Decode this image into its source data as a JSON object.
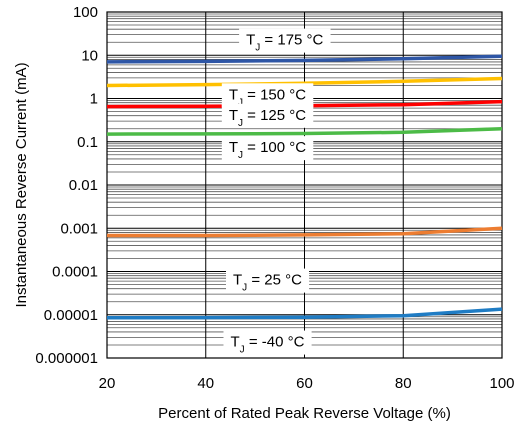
{
  "chart_data": {
    "type": "line",
    "title": "",
    "xlabel": "Percent of Rated Peak Reverse Voltage (%)",
    "ylabel": "Instantaneous Reverse Current (mA)",
    "xlim": [
      20,
      100
    ],
    "ylim": [
      1e-06,
      100
    ],
    "yscale": "log",
    "grid": true,
    "x_ticks": [
      20,
      40,
      60,
      80,
      100
    ],
    "x_tick_labels": [
      "20",
      "40",
      "60",
      "80",
      "100"
    ],
    "y_ticks": [
      1e-06,
      1e-05,
      0.0001,
      0.001,
      0.01,
      0.1,
      1,
      10,
      100
    ],
    "y_tick_labels": [
      "0.000001",
      "0.00001",
      "0.0001",
      "0.001",
      "0.01",
      "0.1",
      "1",
      "10",
      "100"
    ],
    "series": [
      {
        "color": "#2e56a6",
        "x": [
          20,
          40,
          60,
          80,
          100
        ],
        "y": [
          7.0,
          7.2,
          7.6,
          8.3,
          9.5
        ]
      },
      {
        "color": "#ffc000",
        "x": [
          20,
          40,
          60,
          80,
          100
        ],
        "y": [
          2.0,
          2.1,
          2.25,
          2.5,
          2.9
        ]
      },
      {
        "color": "#ff0000",
        "x": [
          20,
          40,
          60,
          80,
          100
        ],
        "y": [
          0.65,
          0.66,
          0.68,
          0.72,
          0.85
        ]
      },
      {
        "color": "#4cbb47",
        "x": [
          20,
          40,
          60,
          80,
          100
        ],
        "y": [
          0.15,
          0.152,
          0.155,
          0.165,
          0.2
        ]
      },
      {
        "color": "#ed7d31",
        "x": [
          20,
          40,
          60,
          80,
          100
        ],
        "y": [
          0.00068,
          0.00068,
          0.0007,
          0.00075,
          0.001
        ]
      },
      {
        "color": "#1f7cc4",
        "x": [
          20,
          40,
          60,
          80,
          100
        ],
        "y": [
          8.5e-06,
          8.6e-06,
          8.8e-06,
          9.5e-06,
          1.35e-05
        ]
      }
    ],
    "annotations": [
      {
        "x": 56,
        "y": 23,
        "text": "T",
        "sub": "J",
        "rest": " = 175 °C"
      },
      {
        "x": 52.5,
        "y": 1.25,
        "text": "T",
        "sub": "J",
        "rest": " = 150 °C"
      },
      {
        "x": 52.5,
        "y": 0.42,
        "text": "T",
        "sub": "J",
        "rest": " = 125 °C"
      },
      {
        "x": 52.5,
        "y": 0.075,
        "text": "T",
        "sub": "J",
        "rest": " = 100 °C"
      },
      {
        "x": 52.5,
        "y": 6.5e-05,
        "text": "T",
        "sub": "J",
        "rest": " = 25 °C"
      },
      {
        "x": 52.5,
        "y": 2.4e-06,
        "text": "T",
        "sub": "J",
        "rest": " = -40 °C"
      }
    ]
  }
}
